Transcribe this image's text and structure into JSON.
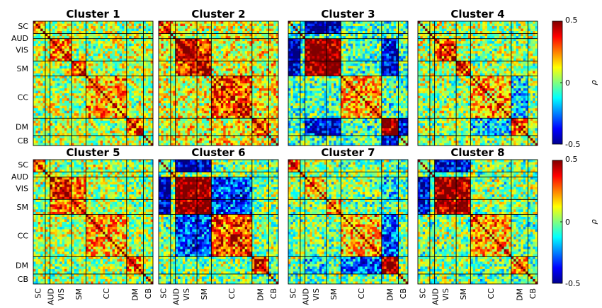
{
  "chart_data": {
    "type": "heatmap",
    "panels": [
      {
        "title": "Cluster 1"
      },
      {
        "title": "Cluster 2"
      },
      {
        "title": "Cluster 3"
      },
      {
        "title": "Cluster 4"
      },
      {
        "title": "Cluster 5"
      },
      {
        "title": "Cluster 6"
      },
      {
        "title": "Cluster 7"
      },
      {
        "title": "Cluster 8"
      }
    ],
    "network_labels": [
      "SC",
      "AUD",
      "VIS",
      "SM",
      "CC",
      "DM",
      "CB"
    ],
    "network_sizes": [
      5,
      2,
      9,
      6,
      17,
      7,
      4
    ],
    "matrix_size": 50,
    "colorbar": {
      "label": "ρ",
      "vmin": -0.5,
      "vmax": 0.5,
      "ticks": [
        "0.5",
        "0",
        "-0.5"
      ],
      "colormap": "jet"
    },
    "panel_block_means": [
      {
        "SC-SC": 0.25,
        "VIS-VIS": 0.25,
        "SM-SM": 0.3,
        "CC-CC": 0.2,
        "DM-DM": 0.3,
        "default": 0.05
      },
      {
        "SC-SC": 0.2,
        "VIS-VIS": 0.45,
        "SM-SM": 0.45,
        "VIS-SM": 0.35,
        "CC-CC": 0.3,
        "DM-DM": 0.25,
        "default": 0.1
      },
      {
        "VIS-VIS": 0.55,
        "SM-SM": 0.55,
        "VIS-SM": 0.5,
        "SC-VIS": -0.45,
        "SC-SM": -0.45,
        "CC-CC": 0.2,
        "DM-DM": 0.5,
        "VIS-DM": -0.4,
        "SM-DM": -0.4,
        "DM-CB": -0.4,
        "default": -0.05
      },
      {
        "VIS-VIS": 0.3,
        "SM-SM": 0.3,
        "CC-CC": 0.2,
        "DM-DM": 0.3,
        "DM-CC": -0.15,
        "default": 0.03
      },
      {
        "SC-SC": 0.25,
        "VIS-VIS": 0.35,
        "SM-SM": 0.3,
        "VIS-SM": 0.25,
        "CC-CC": 0.2,
        "DM-DM": 0.25,
        "default": 0.05
      },
      {
        "VIS-VIS": 0.55,
        "SM-SM": 0.55,
        "VIS-SM": 0.5,
        "SC-VIS": -0.45,
        "SC-SM": -0.45,
        "CC-CC": 0.3,
        "DM-DM": 0.3,
        "VIS-CC": -0.3,
        "SM-CC": -0.3,
        "default": 0.0
      },
      {
        "SC-SC": 0.25,
        "VIS-VIS": 0.2,
        "SM-SM": 0.2,
        "CC-CC": 0.2,
        "DM-DM": 0.4,
        "DM-CC": -0.25,
        "DM-VIS": -0.15,
        "default": 0.0
      },
      {
        "VIS-VIS": 0.5,
        "SM-SM": 0.5,
        "VIS-SM": 0.45,
        "SC-VIS": -0.4,
        "SC-SM": -0.4,
        "CC-CC": 0.2,
        "DM-DM": 0.25,
        "default": 0.0
      }
    ]
  }
}
